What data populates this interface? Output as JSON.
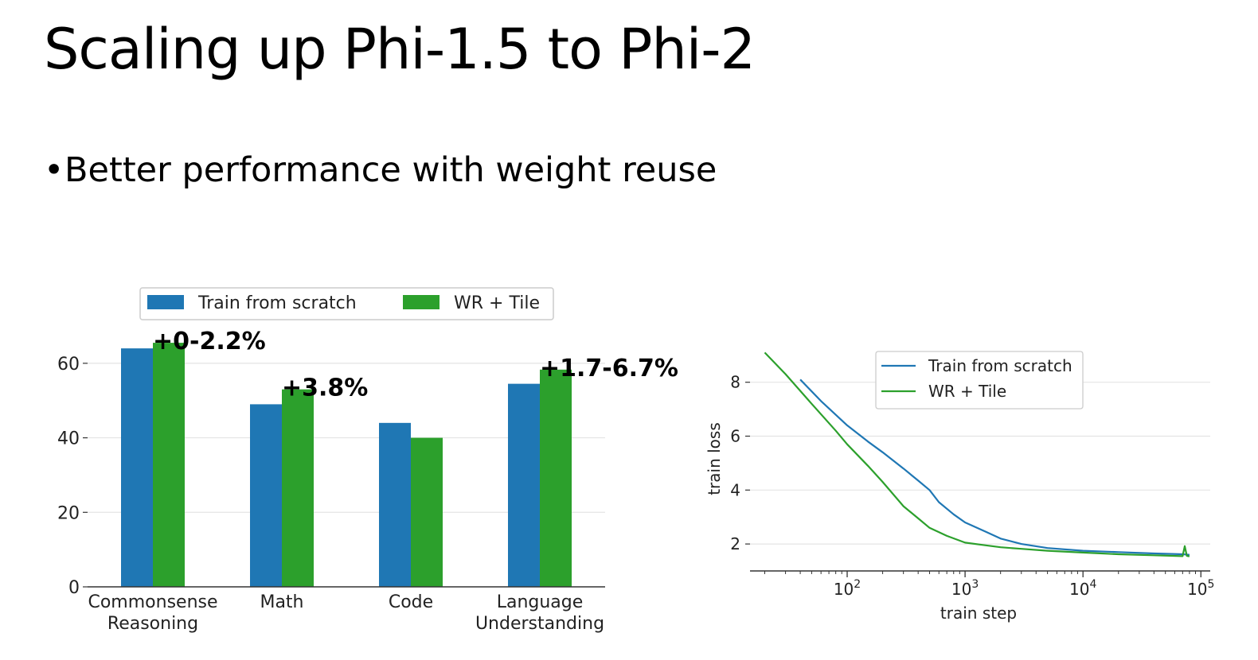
{
  "slide": {
    "title": "Scaling up Phi-1.5 to Phi-2",
    "bullet": "Better performance with weight reuse"
  },
  "colors": {
    "blue": "#1f77b4",
    "green": "#2ca02c"
  },
  "chart_data": [
    {
      "type": "bar",
      "categories": [
        "Commonsense\nReasoning",
        "Math",
        "Code",
        "Language\nUnderstanding"
      ],
      "series": [
        {
          "name": "Train from scratch",
          "values": [
            64,
            49,
            44,
            54.5
          ]
        },
        {
          "name": "WR + Tile",
          "values": [
            65.5,
            53,
            40,
            58.3
          ]
        }
      ],
      "annotations": [
        "+0-2.2%",
        "+3.8%",
        "",
        "+1.7-6.7%"
      ],
      "yticks": [
        0,
        20,
        40,
        60
      ],
      "ylim": [
        0,
        70
      ],
      "grid": true,
      "legend": "top"
    },
    {
      "type": "line",
      "xlabel": "train step",
      "ylabel": "train loss",
      "xscale": "log",
      "xlim": [
        15,
        120000
      ],
      "ylim": [
        1,
        9.2
      ],
      "xticks": [
        100,
        1000,
        10000,
        100000
      ],
      "xtick_labels": [
        "10^2",
        "10^3",
        "10^4",
        "10^5"
      ],
      "yticks": [
        2,
        4,
        6,
        8
      ],
      "grid": true,
      "legend": "top",
      "series": [
        {
          "name": "Train from scratch",
          "x": [
            40,
            60,
            100,
            150,
            200,
            300,
            400,
            500,
            600,
            800,
            1000,
            1500,
            2000,
            3000,
            5000,
            10000,
            20000,
            40000,
            70000,
            80000
          ],
          "y": [
            8.1,
            7.3,
            6.4,
            5.8,
            5.4,
            4.8,
            4.35,
            4.0,
            3.55,
            3.1,
            2.8,
            2.45,
            2.2,
            2.0,
            1.85,
            1.75,
            1.7,
            1.65,
            1.62,
            1.6
          ]
        },
        {
          "name": "WR + Tile",
          "x": [
            20,
            30,
            50,
            80,
            100,
            150,
            200,
            300,
            400,
            500,
            700,
            1000,
            1500,
            2000,
            3000,
            5000,
            10000,
            20000,
            40000,
            70000,
            73000,
            76000,
            80000
          ],
          "y": [
            9.1,
            8.3,
            7.2,
            6.2,
            5.7,
            4.9,
            4.3,
            3.4,
            2.95,
            2.6,
            2.3,
            2.05,
            1.95,
            1.88,
            1.82,
            1.75,
            1.68,
            1.62,
            1.58,
            1.55,
            1.92,
            1.56,
            1.54
          ]
        }
      ]
    }
  ]
}
